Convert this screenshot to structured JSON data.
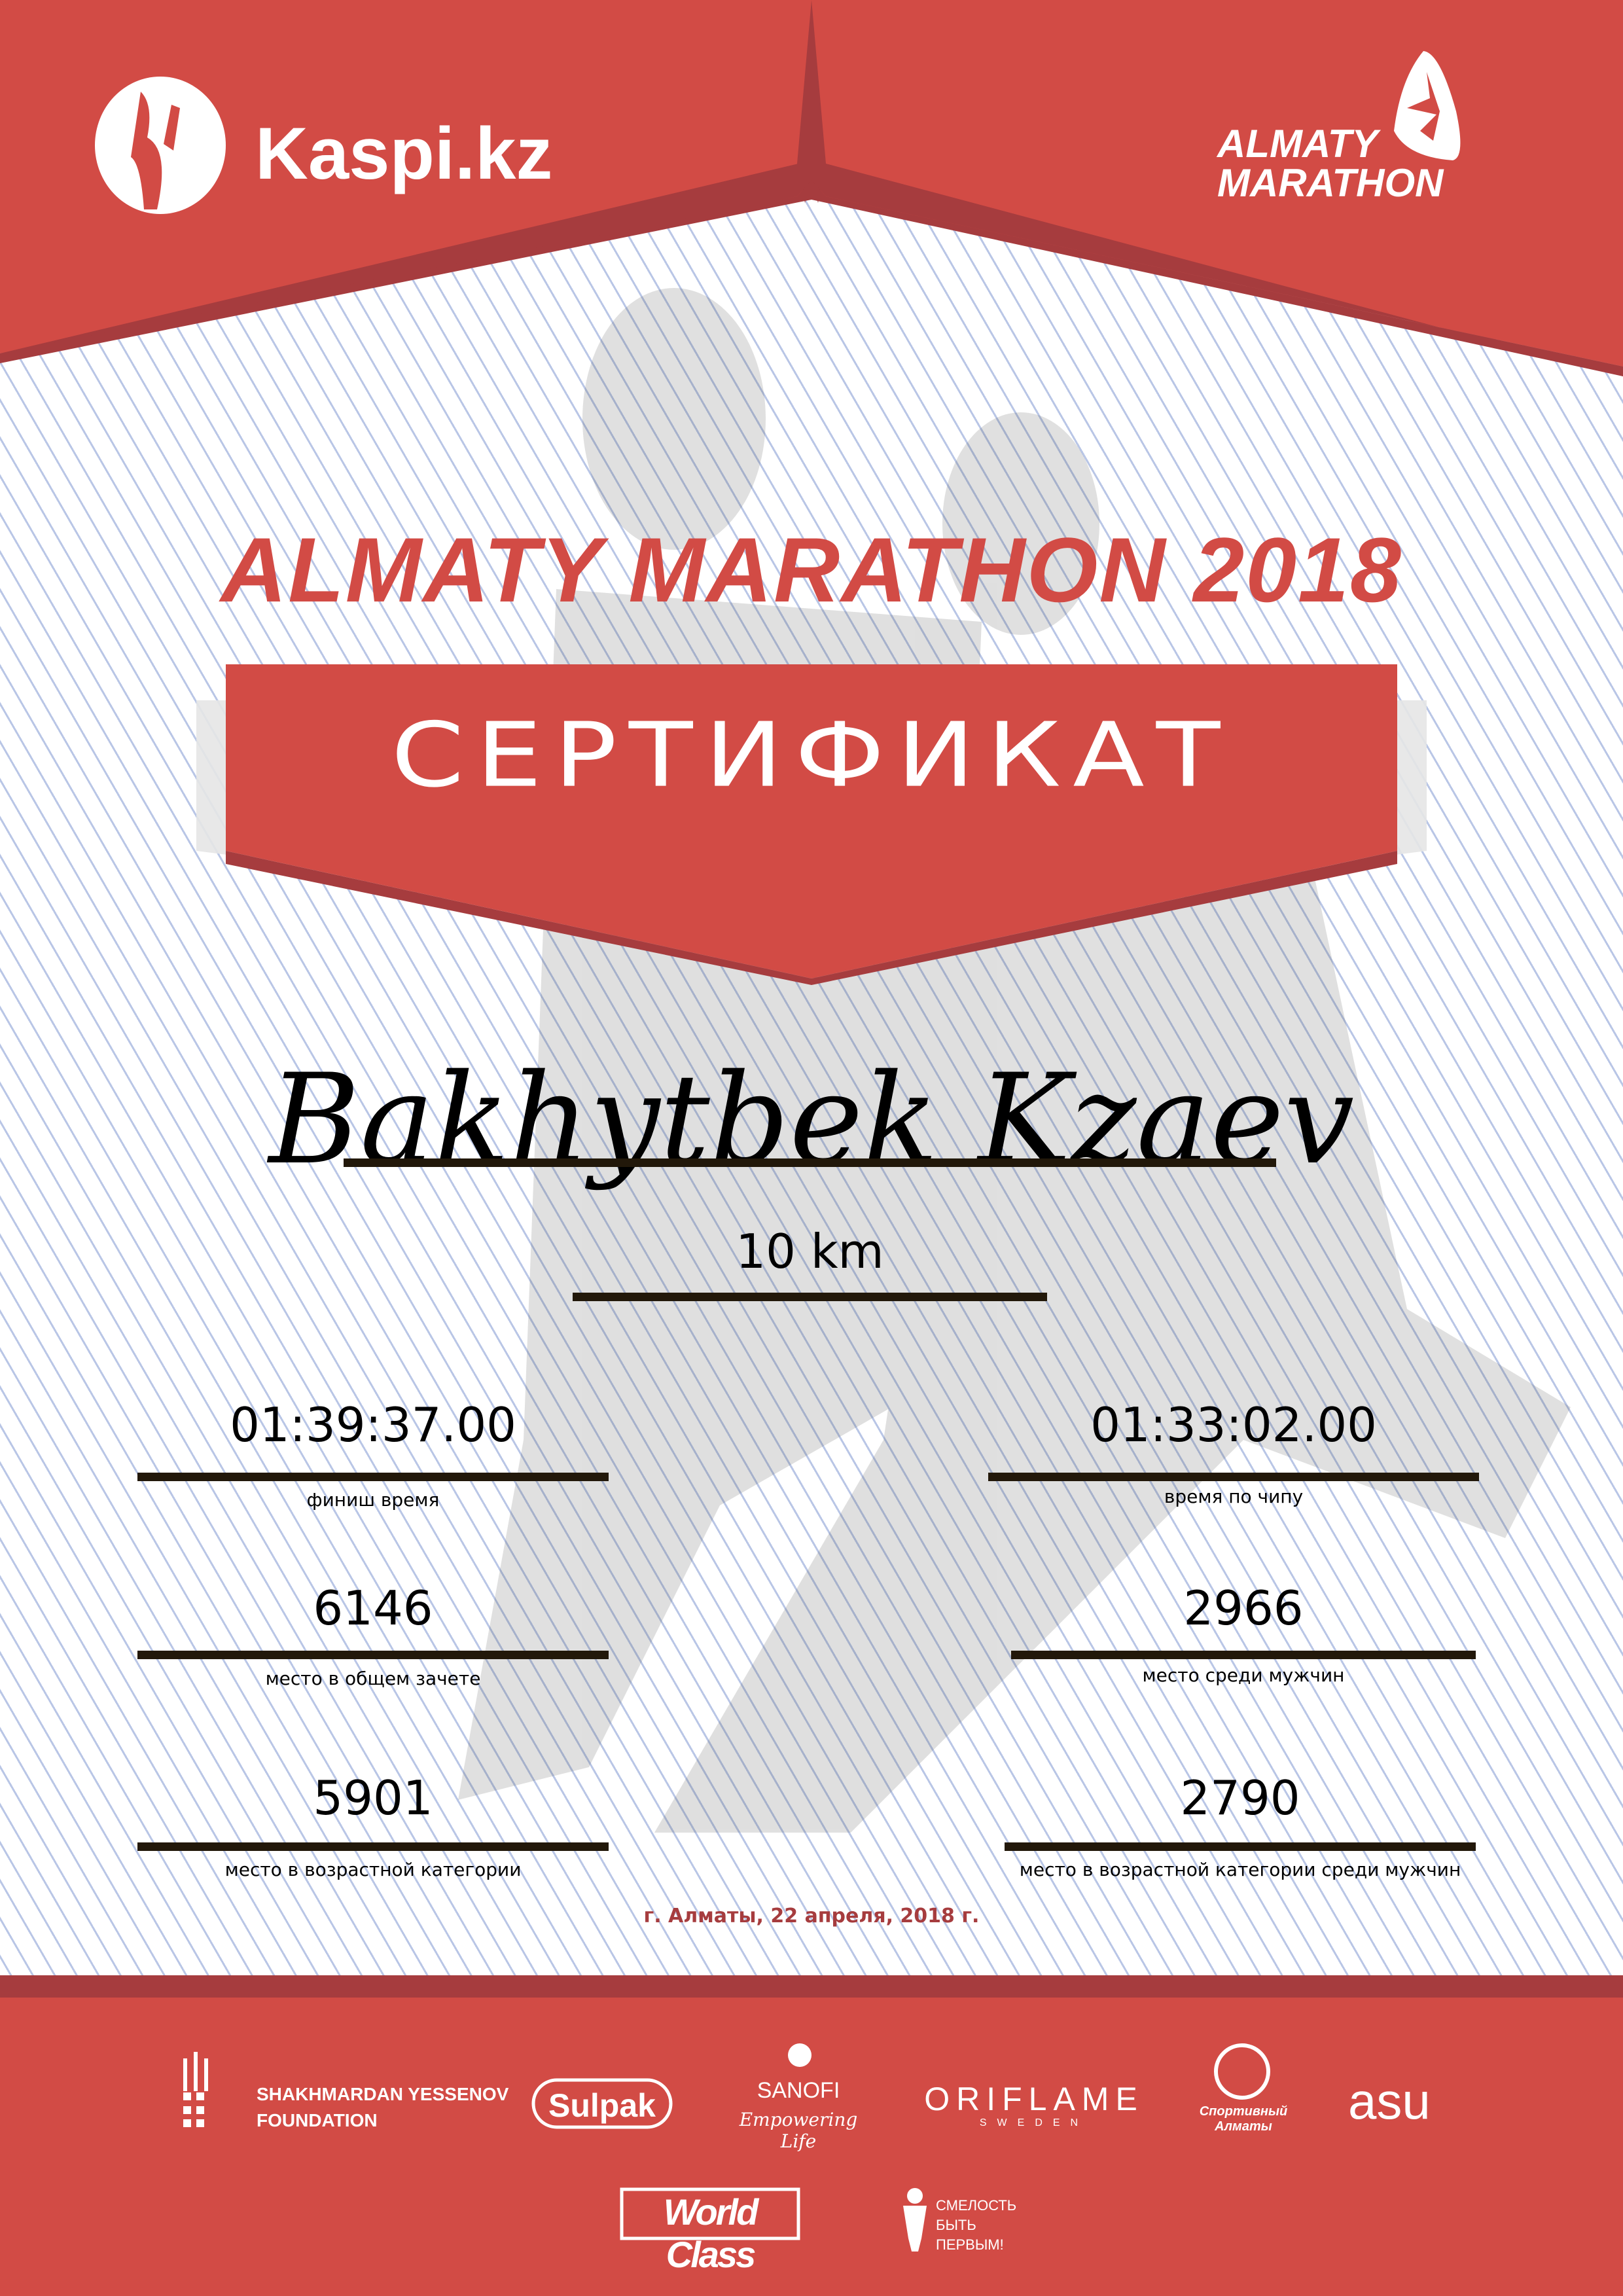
{
  "colors": {
    "brand_red": "#d24b45",
    "dark_red": "#a63c3e",
    "line": "#22180a"
  },
  "header": {
    "left_logo": "Kaspi.kz",
    "right_logo_line1": "ALMATY",
    "right_logo_line2": "MARATHON"
  },
  "title": "ALMATY MARATHON 2018",
  "certificate_label": "СЕРТИФИКАТ",
  "participant": {
    "name": "Bakhytbek Kzaev",
    "distance": "10 km"
  },
  "results": [
    {
      "value": "01:39:37.00",
      "label": "финиш время"
    },
    {
      "value": "01:33:02.00",
      "label": "время по чипу"
    },
    {
      "value": "6146",
      "label": "место в общем зачете"
    },
    {
      "value": "2966",
      "label": "место среди мужчин"
    },
    {
      "value": "5901",
      "label": "место в возрастной категории"
    },
    {
      "value": "2790",
      "label": "место в возрастной категории среди мужчин"
    }
  ],
  "date": "г. Алматы, 22 апреля, 2018 г.",
  "sponsors": {
    "yessenov": [
      "SHAKHMARDAN YESSENOV",
      "FOUNDATION"
    ],
    "sulpak": "Sulpak",
    "sanofi": "SANOFI",
    "sanofi_tag": "Empowering Life",
    "oriflame": "ORIFLAME",
    "oriflame_sub": "SWEDEN",
    "sport_almaty": "Спортивный Алматы",
    "asu": "asu",
    "worldclass": "World Class",
    "fund": [
      "СМЕЛОСТЬ",
      "БЫТЬ",
      "ПЕРВЫМ!"
    ]
  }
}
